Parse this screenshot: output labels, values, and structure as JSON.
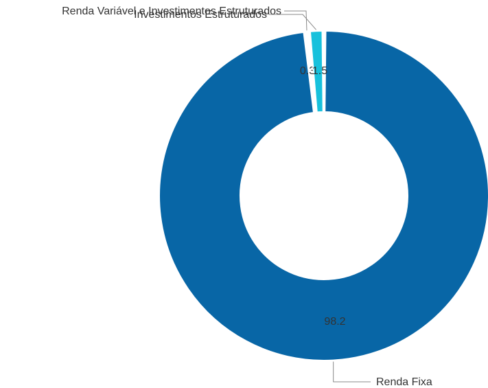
{
  "chart_data": {
    "type": "pie",
    "title": "",
    "donut": true,
    "slices": [
      {
        "label": "Renda Fixa",
        "value": 98.2,
        "display": "98.2",
        "color": "#0866a6"
      },
      {
        "label": "Renda Variável e Investimentos Estruturados",
        "value": 0.3,
        "display": "0.3",
        "color": "#2a89c9"
      },
      {
        "label": "Investimentos Estruturados",
        "value": 1.5,
        "display": "1.5",
        "color": "#17c1dc"
      }
    ],
    "legend": "none"
  }
}
